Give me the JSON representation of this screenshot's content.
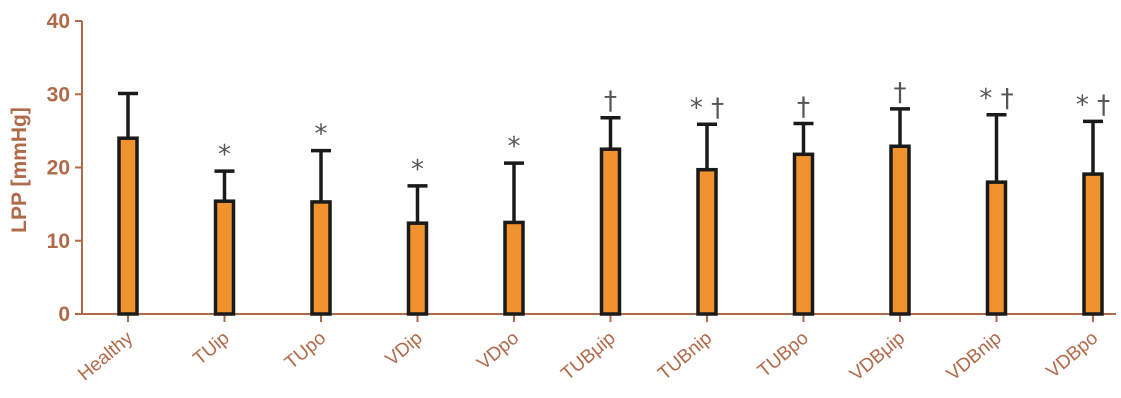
{
  "chart_data": {
    "type": "bar",
    "title": "",
    "xlabel": "",
    "ylabel": "LPP [mmHg]",
    "ylim": [
      0,
      40
    ],
    "yticks": [
      0,
      10,
      20,
      30,
      40
    ],
    "grid": false,
    "categories": [
      "Healthy",
      "TUip",
      "TUpo",
      "VDip",
      "VDpo",
      "TUBμip",
      "TUBnip",
      "TUBpo",
      "VDBμip",
      "VDBnip",
      "VDBpo"
    ],
    "values": [
      24.0,
      15.4,
      15.3,
      12.4,
      12.5,
      22.5,
      19.7,
      21.8,
      22.9,
      18.0,
      19.1
    ],
    "error_upper": [
      30.1,
      19.5,
      22.3,
      17.5,
      20.6,
      26.8,
      25.9,
      26.0,
      28.0,
      27.2,
      26.3
    ],
    "annotations": [
      "",
      "*",
      "*",
      "*",
      "*",
      "†",
      "* †",
      "†",
      "†",
      "* †",
      "* †"
    ],
    "colors": {
      "bar_fill": "#f0922e",
      "bar_edge": "#1a1a1a",
      "axis": "#b06a4a",
      "annotation": "#555555"
    }
  }
}
